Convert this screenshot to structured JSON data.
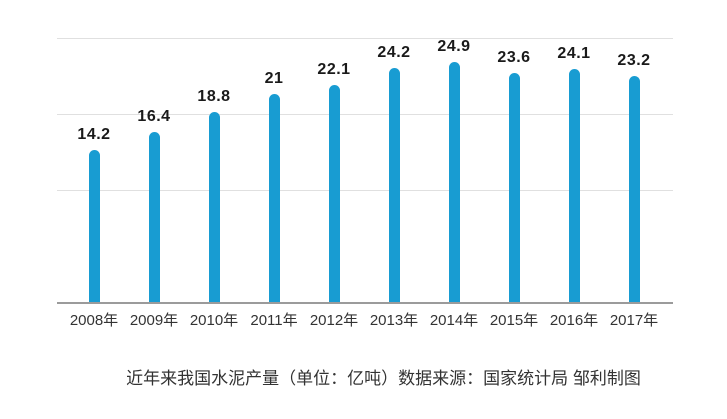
{
  "chart_data": {
    "type": "bar",
    "title": "",
    "caption": "近年来我国水泥产量（单位：亿吨）数据来源：国家统计局 邹利制图",
    "categories": [
      "2008年",
      "2009年",
      "2010年",
      "2011年",
      "2012年",
      "2013年",
      "2014年",
      "2015年",
      "2016年",
      "2017年"
    ],
    "values": [
      14.2,
      16.4,
      18.8,
      21,
      22.1,
      24.2,
      24.9,
      23.6,
      24.1,
      23.2
    ],
    "value_labels": [
      "14.2",
      "16.4",
      "18.8",
      "21",
      "22.1",
      "24.2",
      "24.9",
      "23.6",
      "24.1",
      "23.2"
    ],
    "xlabel": "",
    "ylabel": "",
    "legend": false,
    "grid": true,
    "gridline_count": 3,
    "bar_color": "#189CD2",
    "gridline_color": "#E0E0E0",
    "axis_line_color": "#9B9B9B",
    "value_label_color": "#1A1A1A",
    "tick_label_color": "#333333"
  }
}
